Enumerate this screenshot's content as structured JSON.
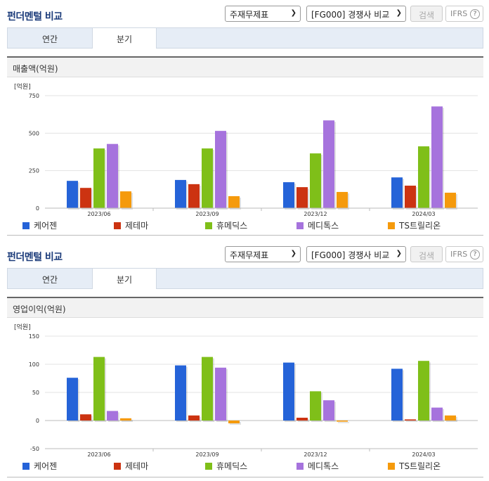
{
  "panels": [
    {
      "title": "펀더멘털 비교",
      "select1": "주재무제표",
      "select2": "[FG000] 경쟁사 비교",
      "search_label": "검색",
      "ifrs_label": "IFRS",
      "help_label": "?",
      "tabs": [
        "연간",
        "분기"
      ],
      "active_tab": "분기",
      "section_title": "매출액(억원)",
      "unit": "[억원]"
    },
    {
      "title": "펀더멘털 비교",
      "select1": "주재무제표",
      "select2": "[FG000] 경쟁사 비교",
      "search_label": "검색",
      "ifrs_label": "IFRS",
      "help_label": "?",
      "tabs": [
        "연간",
        "분기"
      ],
      "active_tab": "분기",
      "section_title": "영업이익(억원)",
      "unit": "[억원]"
    }
  ],
  "colors": {
    "케어젠": "#2563d8",
    "제테마": "#cc3311",
    "휴메딕스": "#7fbf19",
    "메디톡스": "#a673dd",
    "TS트릴리온": "#f59a0c"
  },
  "chart_data": [
    {
      "type": "bar",
      "ylabel": "[억원]",
      "categories": [
        "2023/06",
        "2023/09",
        "2023/12",
        "2024/03"
      ],
      "ylim": [
        0,
        750
      ],
      "yticks": [
        0,
        250,
        500,
        750
      ],
      "grid": true,
      "legend_position": "bottom",
      "series": [
        {
          "name": "케어젠",
          "values": [
            182,
            188,
            173,
            205
          ]
        },
        {
          "name": "제테마",
          "values": [
            135,
            160,
            140,
            150
          ]
        },
        {
          "name": "휴메딕스",
          "values": [
            398,
            398,
            365,
            412
          ]
        },
        {
          "name": "메디톡스",
          "values": [
            428,
            515,
            585,
            678
          ]
        },
        {
          "name": "TS트릴리온",
          "values": [
            112,
            80,
            108,
            103
          ]
        }
      ]
    },
    {
      "type": "bar",
      "ylabel": "[억원]",
      "categories": [
        "2023/06",
        "2023/09",
        "2023/12",
        "2024/03"
      ],
      "ylim": [
        -50,
        150
      ],
      "yticks": [
        -50,
        0,
        50,
        100,
        150
      ],
      "grid": true,
      "legend_position": "bottom",
      "series": [
        {
          "name": "케어젠",
          "values": [
            76,
            98,
            103,
            92
          ]
        },
        {
          "name": "제테마",
          "values": [
            11,
            9,
            5,
            2
          ]
        },
        {
          "name": "휴메딕스",
          "values": [
            113,
            113,
            52,
            106
          ]
        },
        {
          "name": "메디톡스",
          "values": [
            17,
            94,
            36,
            23
          ]
        },
        {
          "name": "TS트릴리온",
          "values": [
            4,
            -5,
            -2,
            9
          ]
        }
      ]
    }
  ]
}
